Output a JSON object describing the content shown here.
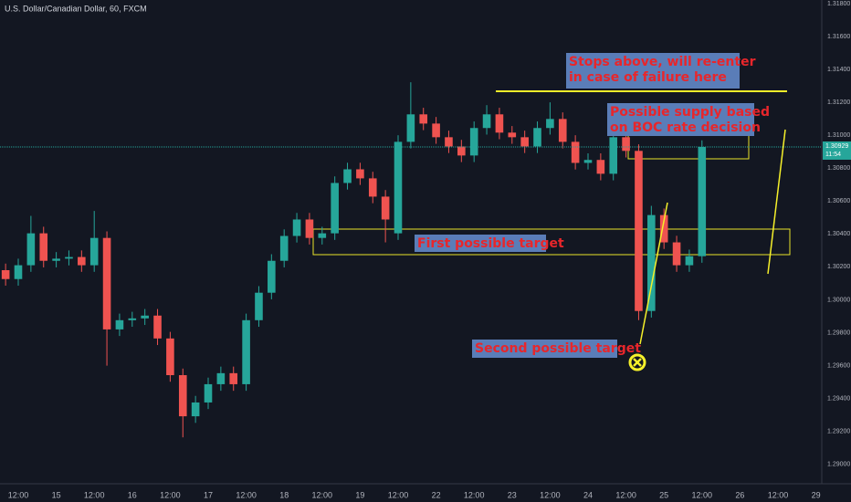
{
  "chart_data": {
    "type": "candlestick",
    "title": "U.S. Dollar/Canadian Dollar, 60, FXCM",
    "x": [
      -4,
      0,
      4,
      8,
      12,
      16,
      20,
      24,
      28,
      32,
      36,
      40,
      44,
      48,
      52,
      56,
      60,
      64,
      68,
      72,
      76,
      80,
      84,
      88,
      92,
      96,
      100,
      104,
      108,
      112,
      116,
      120,
      124,
      128,
      132,
      136,
      140,
      144,
      148,
      152,
      156,
      160,
      164,
      168,
      172,
      176,
      180,
      184,
      188,
      192,
      196,
      200,
      204,
      208,
      212,
      216
    ],
    "open": [
      1.3018,
      1.30126,
      1.3021,
      1.30404,
      1.30237,
      1.3025,
      1.3026,
      1.3021,
      1.30376,
      1.2982,
      1.29876,
      1.29887,
      1.29904,
      1.29765,
      1.29542,
      1.29292,
      1.29376,
      1.29487,
      1.29554,
      1.29487,
      1.29876,
      1.30043,
      1.30237,
      1.30388,
      1.30488,
      1.30376,
      1.30404,
      1.3071,
      1.30793,
      1.30738,
      1.30627,
      1.30404,
      1.3096,
      1.31127,
      1.31071,
      1.30988,
      1.30932,
      1.30877,
      1.31044,
      1.31127,
      1.31016,
      1.30988,
      1.30932,
      1.31044,
      1.31099,
      1.3096,
      1.30832,
      1.3085,
      1.30766,
      1.30988,
      1.30905,
      1.29932,
      1.30515,
      1.30349,
      1.3021,
      1.30265
    ],
    "high": [
      1.3022,
      1.3025,
      1.3051,
      1.30444,
      1.3029,
      1.303,
      1.303,
      1.3054,
      1.30416,
      1.29916,
      1.29927,
      1.29944,
      1.29944,
      1.29805,
      1.29582,
      1.29416,
      1.29527,
      1.29594,
      1.29594,
      1.29916,
      1.30083,
      1.30277,
      1.30428,
      1.30528,
      1.30528,
      1.30444,
      1.3075,
      1.30833,
      1.30833,
      1.30778,
      1.30667,
      1.31,
      1.31322,
      1.31167,
      1.31111,
      1.31028,
      1.30972,
      1.31084,
      1.31183,
      1.31167,
      1.31056,
      1.31028,
      1.31084,
      1.312,
      1.31139,
      1.31,
      1.3089,
      1.3089,
      1.31028,
      1.31028,
      1.30945,
      1.30571,
      1.30555,
      1.30389,
      1.30305,
      1.30969
    ],
    "low": [
      1.30086,
      1.30086,
      1.3017,
      1.30197,
      1.30197,
      1.30209,
      1.3017,
      1.3017,
      1.296,
      1.2978,
      1.29836,
      1.29847,
      1.29725,
      1.29502,
      1.29164,
      1.29252,
      1.29336,
      1.29447,
      1.29447,
      1.29447,
      1.29836,
      1.30003,
      1.30197,
      1.30348,
      1.30336,
      1.30336,
      1.30364,
      1.3067,
      1.30698,
      1.30587,
      1.30349,
      1.30364,
      1.3092,
      1.31031,
      1.30948,
      1.30892,
      1.30837,
      1.30837,
      1.31004,
      1.30976,
      1.30948,
      1.30892,
      1.30892,
      1.31004,
      1.3092,
      1.30792,
      1.30792,
      1.30726,
      1.30726,
      1.30865,
      1.29876,
      1.29892,
      1.30309,
      1.3017,
      1.3017,
      1.30225
    ],
    "close": [
      1.30126,
      1.3021,
      1.30404,
      1.30237,
      1.3025,
      1.3026,
      1.3021,
      1.30376,
      1.2982,
      1.29876,
      1.29887,
      1.29904,
      1.29765,
      1.29542,
      1.29292,
      1.29376,
      1.29487,
      1.29554,
      1.29487,
      1.29876,
      1.30043,
      1.30237,
      1.30388,
      1.30488,
      1.30376,
      1.30404,
      1.3071,
      1.30793,
      1.30738,
      1.30627,
      1.30488,
      1.3096,
      1.31127,
      1.31071,
      1.30988,
      1.30932,
      1.30877,
      1.31044,
      1.31127,
      1.31016,
      1.30988,
      1.30932,
      1.31044,
      1.31099,
      1.3096,
      1.30832,
      1.3085,
      1.30766,
      1.30988,
      1.30905,
      1.29932,
      1.30515,
      1.30349,
      1.3021,
      1.30265,
      1.30929
    ],
    "up_color": "#26a69a",
    "down_color": "#ef5350",
    "grid": true,
    "xlim": [
      -5.77,
      253.85
    ],
    "ylim": [
      1.28882,
      1.31822
    ],
    "xticks": [
      {
        "value": 0,
        "label": "12:00"
      },
      {
        "value": 12,
        "label": "15"
      },
      {
        "value": 24,
        "label": "12:00"
      },
      {
        "value": 36,
        "label": "16"
      },
      {
        "value": 48,
        "label": "12:00"
      },
      {
        "value": 60,
        "label": "17"
      },
      {
        "value": 72,
        "label": "12:00"
      },
      {
        "value": 84,
        "label": "18"
      },
      {
        "value": 96,
        "label": "12:00"
      },
      {
        "value": 108,
        "label": "19"
      },
      {
        "value": 120,
        "label": "12:00"
      },
      {
        "value": 132,
        "label": "22"
      },
      {
        "value": 144,
        "label": "12:00"
      },
      {
        "value": 156,
        "label": "23"
      },
      {
        "value": 168,
        "label": "12:00"
      },
      {
        "value": 180,
        "label": "24"
      },
      {
        "value": 192,
        "label": "12:00"
      },
      {
        "value": 204,
        "label": "25"
      },
      {
        "value": 216,
        "label": "12:00"
      },
      {
        "value": 228,
        "label": "26"
      },
      {
        "value": 240,
        "label": "12:00"
      },
      {
        "value": 252,
        "label": "29"
      }
    ],
    "yticks": [
      {
        "value": 1.318,
        "label": "1.31800"
      },
      {
        "value": 1.316,
        "label": "1.31600"
      },
      {
        "value": 1.314,
        "label": "1.31400"
      },
      {
        "value": 1.312,
        "label": "1.31200"
      },
      {
        "value": 1.31,
        "label": "1.31000"
      },
      {
        "value": 1.308,
        "label": "1.30800"
      },
      {
        "value": 1.306,
        "label": "1.30600"
      },
      {
        "value": 1.304,
        "label": "1.30400"
      },
      {
        "value": 1.302,
        "label": "1.30200"
      },
      {
        "value": 1.3,
        "label": "1.30000"
      },
      {
        "value": 1.298,
        "label": "1.29800"
      },
      {
        "value": 1.296,
        "label": "1.29600"
      },
      {
        "value": 1.294,
        "label": "1.29400"
      },
      {
        "value": 1.292,
        "label": "1.29200"
      },
      {
        "value": 1.29,
        "label": "1.29000"
      }
    ],
    "last_price": {
      "value": 1.30929,
      "label": "1.30929"
    },
    "countdown": "11:54",
    "annotations": [
      {
        "lines": [
          "Stops above, will re-enter",
          "in case of failure here"
        ]
      },
      {
        "lines": [
          "Possible supply based",
          "on BOC rate decision"
        ]
      },
      {
        "lines": [
          "First possible target"
        ]
      },
      {
        "lines": [
          "Second possible target"
        ]
      }
    ]
  }
}
